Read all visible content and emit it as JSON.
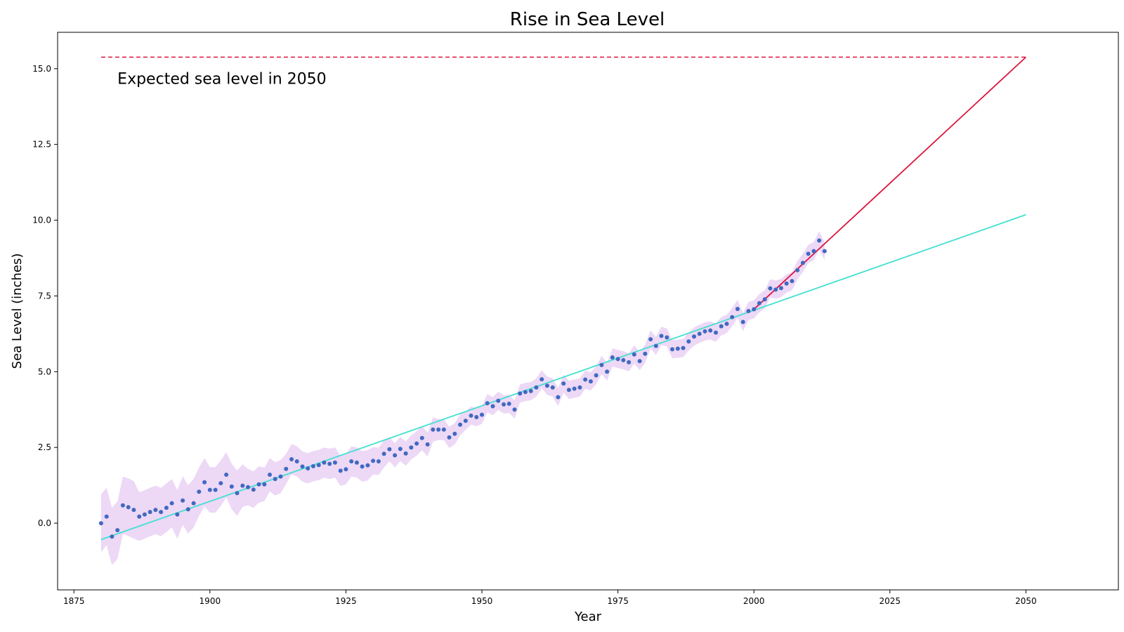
{
  "chart_data": {
    "type": "scatter",
    "title": "Rise in Sea Level",
    "xlabel": "Year",
    "ylabel": "Sea Level (inches)",
    "xlim": [
      1872,
      2067
    ],
    "ylim": [
      -2.2,
      16.2
    ],
    "xticks": [
      1875,
      1900,
      1925,
      1950,
      1975,
      2000,
      2025,
      2050
    ],
    "yticks": [
      0.0,
      2.5,
      5.0,
      7.5,
      10.0,
      12.5,
      15.0
    ],
    "xtick_labels": [
      "1875",
      "1900",
      "1925",
      "1950",
      "1975",
      "2000",
      "2025",
      "2050"
    ],
    "ytick_labels": [
      "0.0",
      "2.5",
      "5.0",
      "7.5",
      "10.0",
      "12.5",
      "15.0"
    ],
    "grid": false,
    "colors": {
      "points": "#4169c0",
      "band": "#e6c8f2",
      "fit_all": "#40e0d0",
      "fit_recent": "#dc143c",
      "reference": "#dc143c"
    },
    "annotation": {
      "text": "Expected sea level in 2050",
      "x": 1883,
      "y": 14.5
    },
    "reference_line": {
      "y": 15.38,
      "x_start": 1880,
      "x_end": 2050
    },
    "fit_all_years": {
      "x": [
        1880,
        2050
      ],
      "y": [
        -0.54,
        10.18
      ]
    },
    "fit_since_2000": {
      "x": [
        2000,
        2050
      ],
      "y": [
        7.06,
        15.38
      ]
    },
    "uncertainty_margin": [
      0.95,
      0.95,
      0.95,
      0.95,
      0.95,
      0.95,
      0.95,
      0.8,
      0.8,
      0.8,
      0.8,
      0.8,
      0.8,
      0.8,
      0.8,
      0.8,
      0.8,
      0.8,
      0.8,
      0.8,
      0.75,
      0.75,
      0.75,
      0.75,
      0.75,
      0.75,
      0.7,
      0.6,
      0.6,
      0.6,
      0.55,
      0.55,
      0.55,
      0.55,
      0.5,
      0.5,
      0.5,
      0.5,
      0.5,
      0.5,
      0.5,
      0.5,
      0.5,
      0.5,
      0.5,
      0.5,
      0.5,
      0.5,
      0.5,
      0.5,
      0.45,
      0.45,
      0.45,
      0.4,
      0.4,
      0.4,
      0.4,
      0.4,
      0.4,
      0.4,
      0.4,
      0.4,
      0.35,
      0.35,
      0.35,
      0.35,
      0.35,
      0.3,
      0.3,
      0.3,
      0.3,
      0.3,
      0.3,
      0.3,
      0.3,
      0.3,
      0.3,
      0.3,
      0.3,
      0.3,
      0.3,
      0.3,
      0.3,
      0.3,
      0.3,
      0.3,
      0.3,
      0.3,
      0.3,
      0.3,
      0.3,
      0.3,
      0.3,
      0.3,
      0.3,
      0.3,
      0.3,
      0.3,
      0.3,
      0.3,
      0.3,
      0.3,
      0.3,
      0.3,
      0.3,
      0.3,
      0.3,
      0.3,
      0.3,
      0.3,
      0.3,
      0.3,
      0.3,
      0.3,
      0.3,
      0.3,
      0.3,
      0.3,
      0.3,
      0.3,
      0.3,
      0.3,
      0.3,
      0.3,
      0.3,
      0.3,
      0.3,
      0.3,
      0.3,
      0.3,
      0.3,
      0.3,
      0.3,
      0.3,
      0.3,
      0.3
    ],
    "series": [
      {
        "x": [
          1880,
          1881,
          1882,
          1883,
          1884,
          1885,
          1886,
          1887,
          1888,
          1889,
          1890,
          1891,
          1892,
          1893,
          1894,
          1895,
          1896,
          1897,
          1898,
          1899,
          1900,
          1901,
          1902,
          1903,
          1904,
          1905,
          1906,
          1907,
          1908,
          1909,
          1910,
          1911,
          1912,
          1913,
          1914,
          1915,
          1916,
          1917,
          1918,
          1919,
          1920,
          1921,
          1922,
          1923,
          1924,
          1925,
          1926,
          1927,
          1928,
          1929,
          1930,
          1931,
          1932,
          1933,
          1934,
          1935,
          1936,
          1937,
          1938,
          1939,
          1940,
          1941,
          1942,
          1943,
          1944,
          1945,
          1946,
          1947,
          1948,
          1949,
          1950,
          1951,
          1952,
          1953,
          1954,
          1955,
          1956,
          1957,
          1958,
          1959,
          1960,
          1961,
          1962,
          1963,
          1964,
          1965,
          1966,
          1967,
          1968,
          1969,
          1970,
          1971,
          1972,
          1973,
          1974,
          1975,
          1976,
          1977,
          1978,
          1979,
          1980,
          1981,
          1982,
          1983,
          1984,
          1985,
          1986,
          1987,
          1988,
          1989,
          1990,
          1991,
          1992,
          1993,
          1994,
          1995,
          1996,
          1997,
          1998,
          1999,
          2000,
          2001,
          2002,
          2003,
          2004,
          2005,
          2006,
          2007,
          2008,
          2009,
          2010,
          2011,
          2012,
          2013
        ],
        "y": [
          0.0,
          0.22,
          -0.44,
          -0.23,
          0.59,
          0.53,
          0.44,
          0.22,
          0.29,
          0.37,
          0.44,
          0.37,
          0.51,
          0.66,
          0.29,
          0.75,
          0.46,
          0.66,
          1.04,
          1.35,
          1.1,
          1.1,
          1.32,
          1.6,
          1.21,
          0.99,
          1.24,
          1.19,
          1.11,
          1.28,
          1.28,
          1.6,
          1.46,
          1.54,
          1.79,
          2.11,
          2.04,
          1.87,
          1.81,
          1.88,
          1.92,
          2.0,
          1.96,
          2.0,
          1.73,
          1.78,
          2.04,
          2.0,
          1.87,
          1.91,
          2.06,
          2.04,
          2.29,
          2.44,
          2.24,
          2.45,
          2.3,
          2.5,
          2.63,
          2.81,
          2.6,
          3.09,
          3.09,
          3.09,
          2.83,
          2.95,
          3.25,
          3.38,
          3.55,
          3.5,
          3.58,
          3.96,
          3.86,
          4.04,
          3.92,
          3.94,
          3.75,
          4.28,
          4.33,
          4.36,
          4.48,
          4.75,
          4.54,
          4.48,
          4.16,
          4.61,
          4.4,
          4.44,
          4.48,
          4.74,
          4.68,
          4.88,
          5.22,
          5.0,
          5.47,
          5.42,
          5.38,
          5.31,
          5.57,
          5.35,
          5.59,
          6.07,
          5.85,
          6.18,
          6.13,
          5.74,
          5.76,
          5.78,
          6.0,
          6.16,
          6.25,
          6.33,
          6.36,
          6.29,
          6.5,
          6.58,
          6.8,
          7.07,
          6.64,
          7.0,
          7.06,
          7.26,
          7.39,
          7.75,
          7.71,
          7.76,
          7.91,
          7.99,
          8.35,
          8.59,
          8.89,
          8.98,
          9.33,
          8.98
        ]
      }
    ]
  }
}
